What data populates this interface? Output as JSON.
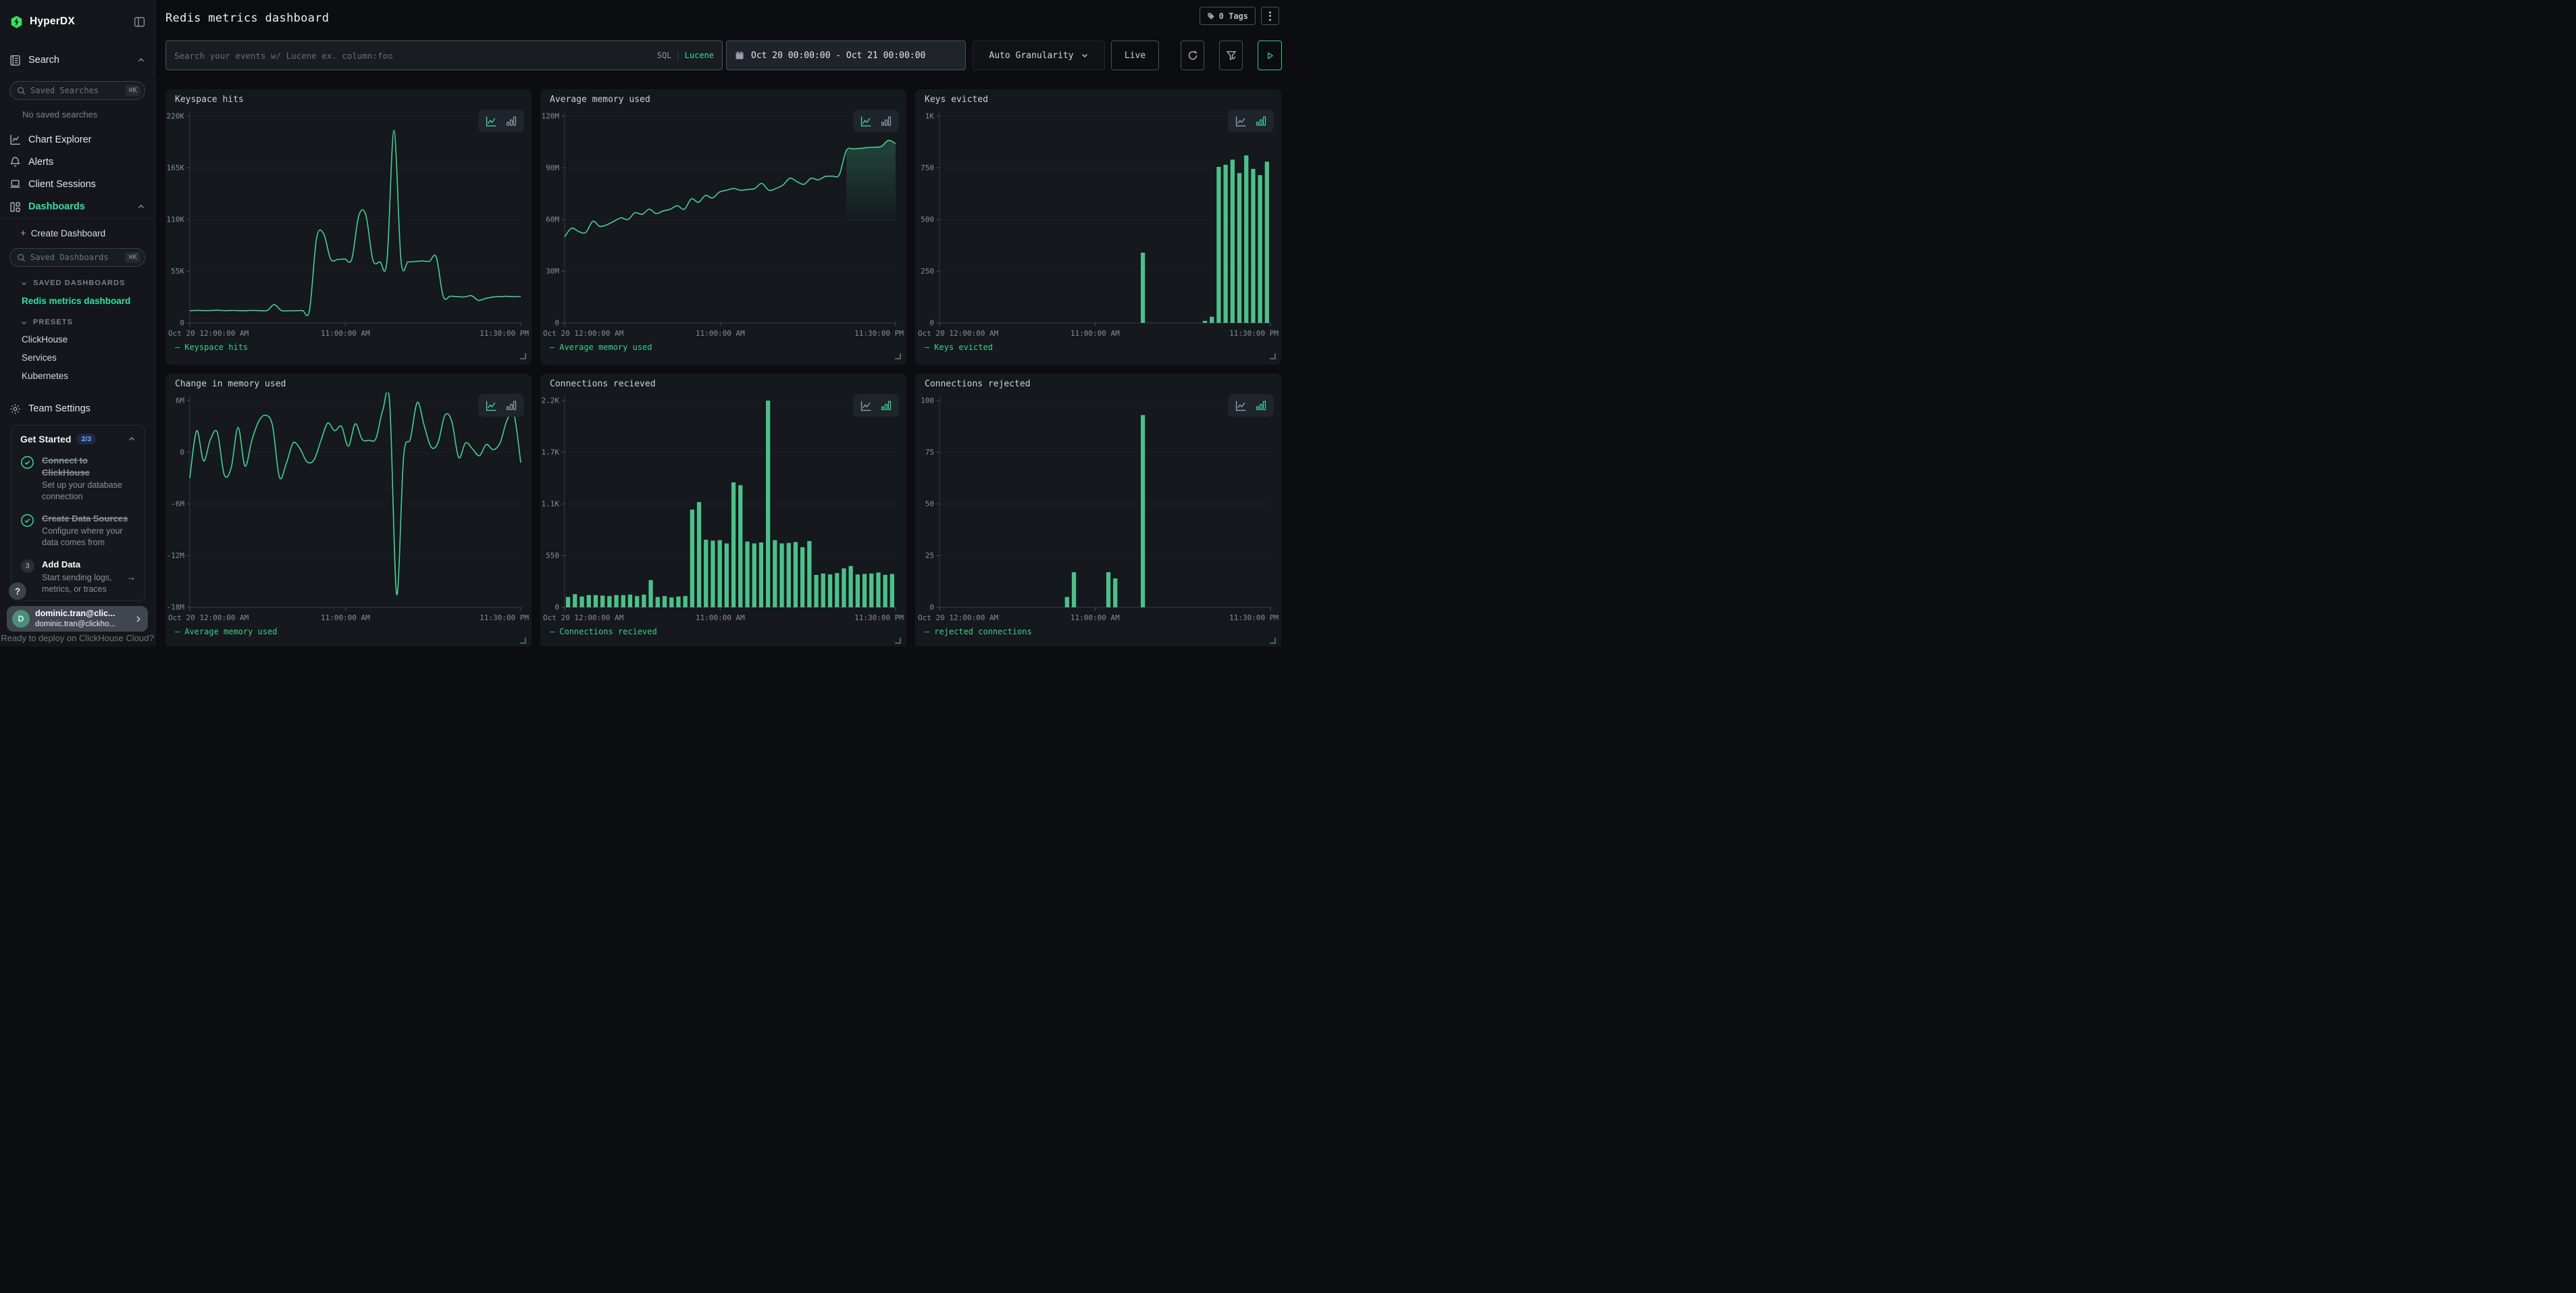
{
  "ui": {
    "legend_dash": "—",
    "plus": "+",
    "arrow": "→",
    "shortcut": "⌘K",
    "help": "?"
  },
  "sidebar": {
    "brand": "HyperDX",
    "search": {
      "label": "Search",
      "placeholder": "Saved Searches",
      "empty": "No saved searches"
    },
    "nav": [
      {
        "label": "Chart Explorer"
      },
      {
        "label": "Alerts"
      },
      {
        "label": "Client Sessions"
      }
    ],
    "dashboards": {
      "label": "Dashboards",
      "create": "Create Dashboard",
      "search_placeholder": "Saved Dashboards",
      "saved_header": "SAVED DASHBOARDS",
      "saved": [
        {
          "label": "Redis metrics dashboard"
        }
      ],
      "presets_header": "PRESETS",
      "presets": [
        "ClickHouse",
        "Services",
        "Kubernetes"
      ]
    },
    "team_settings": "Team Settings",
    "get_started": {
      "title": "Get Started",
      "progress": "2/3",
      "items": [
        {
          "title": "Connect to ClickHouse",
          "desc": "Set up your database connection",
          "done": true
        },
        {
          "title": "Create Data Sources",
          "desc": "Configure where your data comes from",
          "done": true
        },
        {
          "title": "Add Data",
          "desc": "Start sending logs, metrics, or traces",
          "done": false,
          "step": "3"
        }
      ]
    },
    "user": {
      "initial": "D",
      "name": "dominic.tran@clic...",
      "email": "dominic.tran@clickho..."
    },
    "banner": "Ready to deploy on ClickHouse Cloud?"
  },
  "header": {
    "title": "Redis metrics dashboard",
    "tags_label": "0 Tags"
  },
  "toolbar": {
    "search_placeholder": "Search your events w/ Lucene ex. column:foo",
    "lang_sql": "SQL",
    "lang_sep": "|",
    "lang_lucene": "Lucene",
    "date_range": "Oct 20 00:00:00 - Oct 21 00:00:00",
    "granularity": "Auto Granularity",
    "live": "Live"
  },
  "colors": {
    "accent": "#3ddc97",
    "chart_line": "#45d093",
    "chart_bar": "#4cc08a"
  },
  "charts": [
    {
      "title": "Keyspace hits",
      "legend": "Keyspace hits",
      "type": "line",
      "unit": "K",
      "y_min": 0,
      "y_max": 220,
      "y_ticks": [
        {
          "f": 1,
          "label": "220K"
        },
        {
          "f": 0.75,
          "label": "165K"
        },
        {
          "f": 0.5,
          "label": "110K"
        },
        {
          "f": 0.25,
          "label": "55K"
        },
        {
          "f": 0,
          "label": "0"
        }
      ],
      "x_ticks": [
        {
          "pos": 0,
          "label": "Oct 20 12:00:00 AM"
        },
        {
          "pos": 0.47,
          "label": "11:00:00 AM"
        },
        {
          "pos": 1,
          "label": "11:30:00 PM"
        }
      ],
      "values": [
        13,
        13.4,
        13.1,
        13.2,
        13.5,
        13.1,
        13.3,
        13.1,
        13,
        13.3,
        13.1,
        13.2,
        19.5,
        13.2,
        12.9,
        13,
        13.2,
        13.4,
        90,
        95,
        68,
        67.5,
        68,
        67.8,
        114,
        115,
        67,
        65,
        65.5,
        205,
        66,
        65,
        65.3,
        66,
        65.5,
        70,
        28,
        28.5,
        28,
        27.6,
        29,
        24,
        26,
        27.5,
        28,
        28.3,
        27.8,
        28.2
      ]
    },
    {
      "title": "Average memory used",
      "legend": "Average memory used",
      "type": "line",
      "unit": "M",
      "y_min": 0,
      "y_max": 120,
      "tail_fill_from": 40,
      "y_ticks": [
        {
          "f": 1,
          "label": "120M"
        },
        {
          "f": 0.75,
          "label": "90M"
        },
        {
          "f": 0.5,
          "label": "60M"
        },
        {
          "f": 0.25,
          "label": "30M"
        },
        {
          "f": 0,
          "label": "0"
        }
      ],
      "x_ticks": [
        {
          "pos": 0,
          "label": "Oct 20 12:00:00 AM"
        },
        {
          "pos": 0.47,
          "label": "11:00:00 AM"
        },
        {
          "pos": 1,
          "label": "11:30:00 PM"
        }
      ],
      "values": [
        50,
        55,
        53,
        52.5,
        59,
        56,
        57,
        59,
        61,
        60,
        64,
        63,
        66,
        63.5,
        65,
        66,
        68,
        66,
        72,
        70,
        74,
        72.5,
        76,
        77,
        78,
        77,
        77.5,
        78,
        81,
        77,
        78,
        80,
        84,
        82,
        80.5,
        84,
        83,
        85,
        85.2,
        86,
        100,
        101,
        101.3,
        101.8,
        102,
        102.5,
        106,
        104
      ]
    },
    {
      "title": "Keys evicted",
      "legend": "Keys evicted",
      "type": "bar",
      "unit": "",
      "y_min": 0,
      "y_max": 1000,
      "y_ticks": [
        {
          "f": 1,
          "label": "1K"
        },
        {
          "f": 0.75,
          "label": "750"
        },
        {
          "f": 0.5,
          "label": "500"
        },
        {
          "f": 0.25,
          "label": "250"
        },
        {
          "f": 0,
          "label": "0"
        }
      ],
      "x_ticks": [
        {
          "pos": 0,
          "label": "Oct 20 12:00:00 AM"
        },
        {
          "pos": 0.47,
          "label": "11:00:00 AM"
        },
        {
          "pos": 1,
          "label": "11:30:00 PM"
        }
      ],
      "values": [
        0,
        0,
        0,
        0,
        0,
        0,
        0,
        0,
        0,
        0,
        0,
        0,
        0,
        0,
        0,
        0,
        0,
        0,
        0,
        0,
        0,
        0,
        0,
        0,
        0,
        0,
        0,
        0,
        0,
        340,
        0,
        0,
        0,
        0,
        0,
        0,
        0,
        0,
        10,
        30,
        755,
        765,
        790,
        725,
        810,
        745,
        715,
        780
      ]
    },
    {
      "title": "Change in memory used",
      "legend": "Average memory used",
      "type": "line",
      "unit": "M",
      "y_min": -18,
      "y_max": 6,
      "y_ticks": [
        {
          "f": 1,
          "label": "6M"
        },
        {
          "f": 0.75,
          "label": "0"
        },
        {
          "f": 0.5,
          "label": "-6M"
        },
        {
          "f": 0.25,
          "label": "-12M"
        },
        {
          "f": 0,
          "label": "-18M"
        }
      ],
      "x_ticks": [
        {
          "pos": 0,
          "label": "Oct 20 12:00:00 AM"
        },
        {
          "pos": 0.47,
          "label": "11:00:00 AM"
        },
        {
          "pos": 1,
          "label": "11:30:00 PM"
        }
      ],
      "values": [
        -3,
        2.5,
        -1,
        1.5,
        2.3,
        -2.6,
        -1.8,
        2.9,
        -1.6,
        1.4,
        3.6,
        4.3,
        3.1,
        -2.9,
        -1.3,
        1.1,
        0.4,
        -1.1,
        -0.9,
        1.3,
        3.4,
        2.5,
        3,
        0.7,
        3.3,
        1.5,
        1.4,
        1.6,
        4.9,
        5.7,
        -16.5,
        -0.6,
        1.6,
        5.8,
        3.1,
        0.6,
        1.1,
        4.3,
        3.6,
        -0.6,
        1.1,
        0.4,
        -0.4,
        0.9,
        0.3,
        1.1,
        3.7,
        4.5,
        -1.2
      ]
    },
    {
      "title": "Connections recieved",
      "legend": "Connections recieved",
      "type": "bar",
      "unit": "",
      "y_min": 0,
      "y_max": 2200,
      "y_ticks": [
        {
          "f": 1,
          "label": "2.2K"
        },
        {
          "f": 0.75,
          "label": "1.7K"
        },
        {
          "f": 0.5,
          "label": "1.1K"
        },
        {
          "f": 0.25,
          "label": "550"
        },
        {
          "f": 0,
          "label": "0"
        }
      ],
      "x_ticks": [
        {
          "pos": 0,
          "label": "Oct 20 12:00:00 AM"
        },
        {
          "pos": 0.47,
          "label": "11:00:00 AM"
        },
        {
          "pos": 1,
          "label": "11:30:00 PM"
        }
      ],
      "values": [
        110,
        140,
        115,
        130,
        130,
        125,
        120,
        130,
        130,
        135,
        120,
        135,
        290,
        110,
        120,
        105,
        115,
        120,
        1040,
        1120,
        720,
        710,
        715,
        680,
        1330,
        1300,
        700,
        680,
        690,
        2200,
        715,
        680,
        685,
        695,
        640,
        705,
        345,
        360,
        350,
        365,
        415,
        440,
        350,
        355,
        360,
        370,
        345,
        355
      ]
    },
    {
      "title": "Connections rejected",
      "legend": "rejected connections",
      "type": "bar",
      "unit": "",
      "y_min": 0,
      "y_max": 100,
      "y_ticks": [
        {
          "f": 1,
          "label": "100"
        },
        {
          "f": 0.75,
          "label": "75"
        },
        {
          "f": 0.5,
          "label": "50"
        },
        {
          "f": 0.25,
          "label": "25"
        },
        {
          "f": 0,
          "label": "0"
        }
      ],
      "x_ticks": [
        {
          "pos": 0,
          "label": "Oct 20 12:00:00 AM"
        },
        {
          "pos": 0.47,
          "label": "11:00:00 AM"
        },
        {
          "pos": 1,
          "label": "11:30:00 PM"
        }
      ],
      "values": [
        0,
        0,
        0,
        0,
        0,
        0,
        0,
        0,
        0,
        0,
        0,
        0,
        0,
        0,
        0,
        0,
        0,
        0,
        5,
        17,
        0,
        0,
        0,
        0,
        17,
        14,
        0,
        0,
        0,
        93,
        0,
        0,
        0,
        0,
        0,
        0,
        0,
        0,
        0,
        0,
        0,
        0,
        0,
        0,
        0,
        0,
        0,
        0
      ]
    }
  ]
}
